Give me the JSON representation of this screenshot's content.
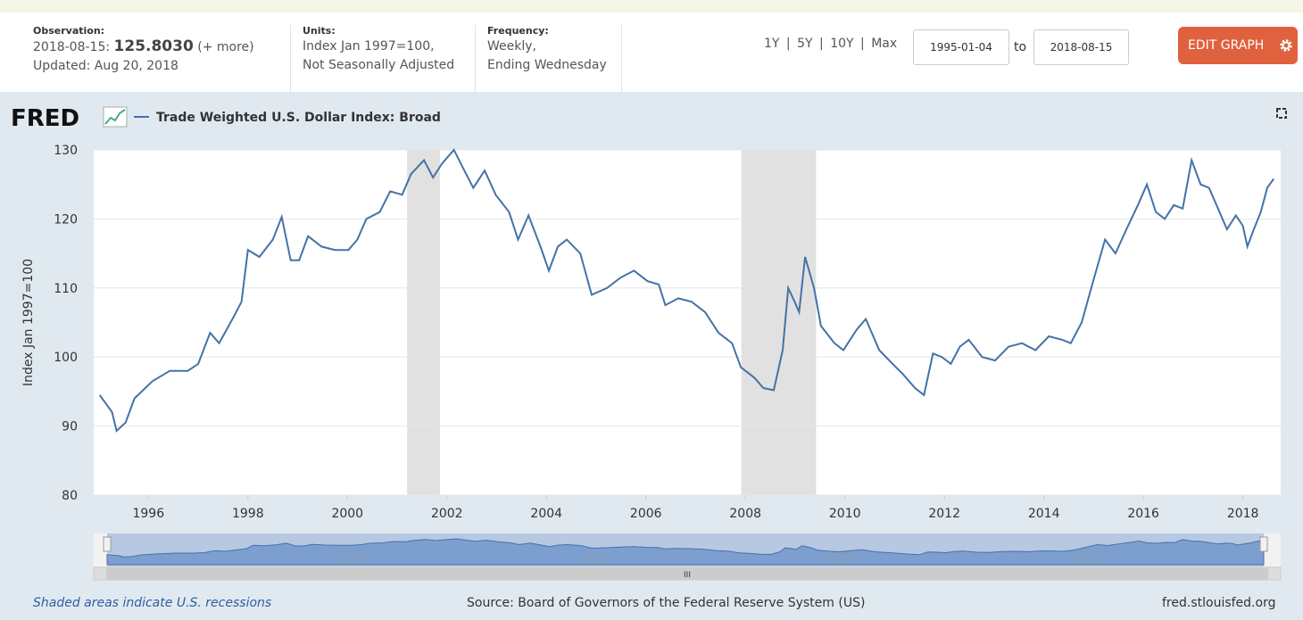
{
  "header": {
    "observation_label": "Observation:",
    "observation_date": "2018-08-15:",
    "observation_value": "125.8030",
    "more": "(+ more)",
    "updated": "Updated: Aug 20, 2018",
    "units_label": "Units:",
    "units_line1": "Index Jan 1997=100,",
    "units_line2": "Not Seasonally Adjusted",
    "frequency_label": "Frequency:",
    "frequency_line1": "Weekly,",
    "frequency_line2": "Ending Wednesday",
    "range_buttons": [
      "1Y",
      "5Y",
      "10Y",
      "Max"
    ],
    "separator": "|",
    "start_date": "1995-01-04",
    "to": "to",
    "end_date": "2018-08-15",
    "edit_button": "EDIT GRAPH"
  },
  "logo": "FRED",
  "chart_data": {
    "type": "line",
    "y_label": "Index Jan 1997=100",
    "x": [
      1995.02,
      1995.27,
      1995.36,
      1995.54,
      1995.72,
      1996.08,
      1996.43,
      1996.79,
      1997.0,
      1997.24,
      1997.42,
      1997.69,
      1997.87,
      1998.0,
      1998.23,
      1998.5,
      1998.68,
      1998.86,
      1999.03,
      1999.21,
      1999.48,
      1999.75,
      2000.02,
      2000.2,
      2000.38,
      2000.65,
      2000.86,
      2001.1,
      2001.28,
      2001.54,
      2001.72,
      2001.9,
      2002.14,
      2002.35,
      2002.53,
      2002.76,
      2002.98,
      2003.25,
      2003.43,
      2003.64,
      2003.88,
      2004.05,
      2004.23,
      2004.41,
      2004.68,
      2004.91,
      2005.22,
      2005.49,
      2005.76,
      2006.03,
      2006.26,
      2006.39,
      2006.65,
      2006.92,
      2007.19,
      2007.46,
      2007.73,
      2007.91,
      2008.18,
      2008.36,
      2008.57,
      2008.75,
      2008.86,
      2008.99,
      2009.08,
      2009.2,
      2009.38,
      2009.52,
      2009.79,
      2009.97,
      2010.24,
      2010.42,
      2010.69,
      2010.96,
      2011.17,
      2011.41,
      2011.59,
      2011.77,
      2011.95,
      2012.13,
      2012.31,
      2012.49,
      2012.76,
      2013.02,
      2013.29,
      2013.56,
      2013.83,
      2014.1,
      2014.37,
      2014.54,
      2014.76,
      2014.99,
      2015.23,
      2015.44,
      2015.66,
      2015.89,
      2016.07,
      2016.25,
      2016.43,
      2016.61,
      2016.79,
      2016.97,
      2017.15,
      2017.32,
      2017.5,
      2017.68,
      2017.86,
      2018.0,
      2018.09,
      2018.22,
      2018.36,
      2018.49,
      2018.62
    ],
    "series": [
      {
        "name": "Trade Weighted U.S. Dollar Index: Broad",
        "color": "#4572a7",
        "values": [
          94.5,
          92,
          89.3,
          90.5,
          94,
          96.5,
          98,
          98,
          99,
          103.5,
          102,
          105.5,
          108,
          115.5,
          114.5,
          117,
          120.3,
          114,
          114,
          117.5,
          116,
          115.5,
          115.5,
          117,
          120,
          121,
          124,
          123.5,
          126.5,
          128.5,
          126,
          128,
          130,
          127,
          124.5,
          127,
          123.5,
          121,
          117,
          120.5,
          116,
          112.5,
          116,
          117,
          115,
          109,
          110,
          111.5,
          112.5,
          111,
          110.5,
          107.5,
          108.5,
          108,
          106.5,
          103.5,
          102,
          98.5,
          97,
          95.5,
          95.2,
          101,
          110,
          108,
          106.5,
          114.5,
          110,
          104.5,
          102,
          101,
          104,
          105.5,
          101,
          99,
          97.5,
          95.5,
          94.5,
          100.5,
          100,
          99,
          101.5,
          102.5,
          100,
          99.5,
          101.5,
          102,
          101,
          103,
          102.5,
          102,
          105,
          111,
          117,
          115,
          118.5,
          122,
          125,
          121,
          120,
          122,
          121.5,
          128.5,
          125,
          124.5,
          121.5,
          118.5,
          120.5,
          119,
          116,
          118.5,
          121,
          124.5,
          125.8
        ]
      }
    ],
    "recessions": [
      [
        2001.2,
        2001.86
      ],
      [
        2007.92,
        2009.42
      ]
    ],
    "xlim": [
      1994.9,
      2018.76
    ],
    "xticks": [
      1996,
      1998,
      2000,
      2002,
      2004,
      2006,
      2008,
      2010,
      2012,
      2014,
      2016,
      2018
    ],
    "ylim": [
      80,
      130
    ],
    "yticks": [
      80,
      90,
      100,
      110,
      120,
      130
    ],
    "grid": true,
    "navigator_ticks": [
      2000,
      2005,
      2010,
      2015
    ],
    "navigator_handle": "III"
  },
  "footer": {
    "note": "Shaded areas indicate U.S. recessions",
    "source": "Source: Board of Governors of the Federal Reserve System (US)",
    "site": "fred.stlouisfed.org"
  }
}
